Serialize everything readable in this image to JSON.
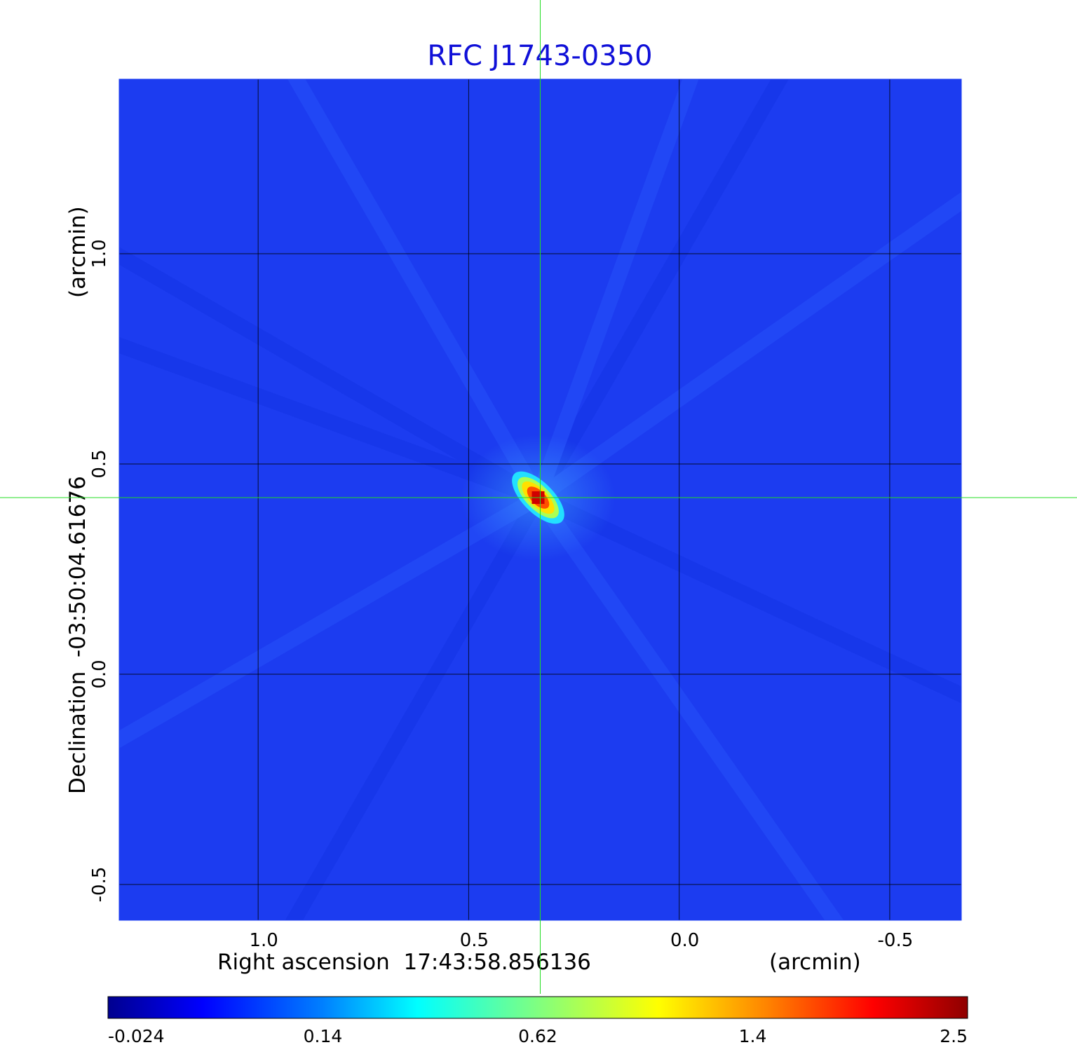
{
  "chart_data": {
    "type": "heatmap",
    "title": "RFC J1743-0350",
    "xlabel": "Right ascension  17:43:58.856136",
    "xlabel_unit": "(arcmin)",
    "ylabel": "Declination  -03:50:04.61676",
    "ylabel_unit": "(arcmin)",
    "x_ticks": [
      1.0,
      0.5,
      0.0,
      -0.5
    ],
    "x_tick_labels": [
      "1.0",
      "0.5",
      "0.0",
      "-0.5"
    ],
    "y_ticks": [
      1.0,
      0.5,
      0.0,
      -0.5
    ],
    "y_tick_labels": [
      "1.0",
      "0.5",
      "0.0",
      "-0.5"
    ],
    "xlim": [
      1.33,
      -0.67
    ],
    "ylim": [
      -0.585,
      1.415
    ],
    "x_inverted": true,
    "grid": true,
    "crosshair": {
      "x": 0.33,
      "y": 0.42,
      "color": "#22dd22"
    },
    "peak": {
      "x": 0.335,
      "y": 0.42,
      "value": 2.5
    },
    "colormap": "jet",
    "colorbar": {
      "ticks": [
        -0.024,
        0.14,
        0.62,
        1.4,
        2.5
      ],
      "tick_labels": [
        "-0.024",
        "0.14",
        "0.62",
        "1.4",
        "2.5"
      ],
      "range": [
        -0.024,
        2.5
      ]
    }
  },
  "colors": {
    "title": "#1010d8",
    "background_field": "#1c3cf0",
    "grid": "#000000",
    "crosshair": "#22dd22"
  }
}
